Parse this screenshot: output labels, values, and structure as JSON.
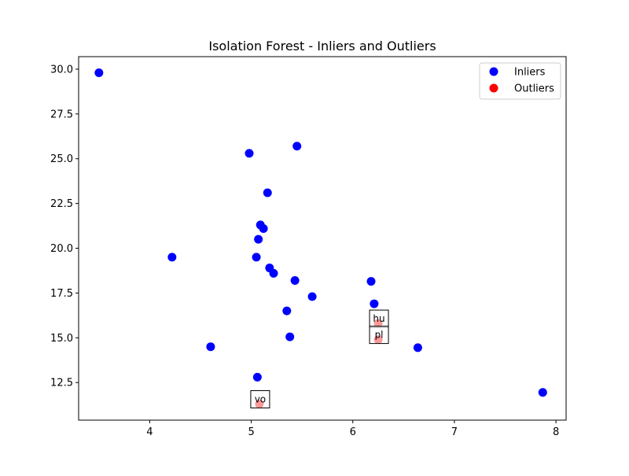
{
  "chart_data": {
    "type": "scatter",
    "title": "Isolation Forest - Inliers and Outliers",
    "xlabel": "",
    "ylabel": "",
    "xlim": [
      3.3,
      8.1
    ],
    "ylim": [
      10.4,
      30.7
    ],
    "x_ticks": [
      4,
      5,
      6,
      7,
      8
    ],
    "y_ticks": [
      12.5,
      15.0,
      17.5,
      20.0,
      22.5,
      25.0,
      27.5,
      30.0
    ],
    "grid": false,
    "legend_position": "top-right",
    "series": [
      {
        "name": "Inliers",
        "color": "#0000ff",
        "points": [
          {
            "x": 3.5,
            "y": 29.8
          },
          {
            "x": 4.98,
            "y": 25.3
          },
          {
            "x": 5.45,
            "y": 25.7
          },
          {
            "x": 5.16,
            "y": 23.1
          },
          {
            "x": 5.09,
            "y": 21.3
          },
          {
            "x": 5.12,
            "y": 21.1
          },
          {
            "x": 5.07,
            "y": 20.5
          },
          {
            "x": 4.22,
            "y": 19.5
          },
          {
            "x": 5.05,
            "y": 19.5
          },
          {
            "x": 5.18,
            "y": 18.9
          },
          {
            "x": 5.22,
            "y": 18.6
          },
          {
            "x": 5.43,
            "y": 18.2
          },
          {
            "x": 6.18,
            "y": 18.15
          },
          {
            "x": 5.6,
            "y": 17.3
          },
          {
            "x": 6.21,
            "y": 16.9
          },
          {
            "x": 5.35,
            "y": 16.5
          },
          {
            "x": 5.38,
            "y": 15.05
          },
          {
            "x": 4.6,
            "y": 14.5
          },
          {
            "x": 6.64,
            "y": 14.45
          },
          {
            "x": 5.06,
            "y": 12.8
          },
          {
            "x": 7.87,
            "y": 11.95
          }
        ]
      },
      {
        "name": "Outliers",
        "color": "#ff0000",
        "points": [
          {
            "x": 6.25,
            "y": 15.8,
            "label": "hu"
          },
          {
            "x": 6.25,
            "y": 14.9,
            "label": "pl"
          },
          {
            "x": 5.08,
            "y": 11.3,
            "label": "vo"
          }
        ]
      }
    ]
  }
}
